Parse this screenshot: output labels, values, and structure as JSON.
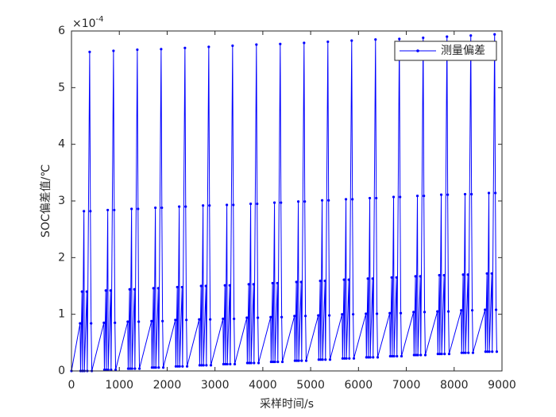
{
  "chart_data": {
    "type": "line",
    "xlabel": "采样时间/s",
    "ylabel": "SOC偏差值/℃",
    "y_multiplier": {
      "base": "×10",
      "exponent": "-4"
    },
    "xlim": [
      0,
      9000
    ],
    "xticks": [
      0,
      1000,
      2000,
      3000,
      4000,
      5000,
      6000,
      7000,
      8000,
      9000
    ],
    "ylim": [
      0,
      6
    ],
    "yticks": [
      0,
      1,
      2,
      3,
      4,
      5,
      6
    ],
    "legend_position": "upper right",
    "grid": false,
    "x": [
      0,
      180,
      190,
      220,
      230,
      260,
      270,
      320,
      330,
      380,
      395,
      410,
      425,
      678,
      688,
      718,
      728,
      758,
      768,
      818,
      828,
      878,
      893,
      908,
      923,
      1176,
      1186,
      1216,
      1226,
      1256,
      1266,
      1316,
      1326,
      1376,
      1391,
      1406,
      1421,
      1674,
      1684,
      1714,
      1724,
      1754,
      1764,
      1814,
      1824,
      1874,
      1889,
      1904,
      1919,
      2172,
      2182,
      2212,
      2222,
      2252,
      2262,
      2312,
      2322,
      2372,
      2387,
      2402,
      2417,
      2670,
      2680,
      2710,
      2720,
      2750,
      2760,
      2810,
      2820,
      2870,
      2885,
      2900,
      2915,
      3168,
      3178,
      3208,
      3218,
      3248,
      3258,
      3308,
      3318,
      3368,
      3383,
      3398,
      3413,
      3666,
      3676,
      3706,
      3716,
      3746,
      3756,
      3806,
      3816,
      3866,
      3881,
      3896,
      3911,
      4164,
      4174,
      4204,
      4214,
      4244,
      4254,
      4304,
      4314,
      4364,
      4379,
      4394,
      4409,
      4662,
      4672,
      4702,
      4712,
      4742,
      4752,
      4802,
      4812,
      4862,
      4877,
      4892,
      4907,
      5160,
      5170,
      5200,
      5210,
      5240,
      5250,
      5300,
      5310,
      5360,
      5375,
      5390,
      5405,
      5658,
      5668,
      5698,
      5708,
      5738,
      5748,
      5798,
      5808,
      5858,
      5873,
      5888,
      5903,
      6156,
      6166,
      6196,
      6206,
      6236,
      6246,
      6296,
      6306,
      6356,
      6371,
      6386,
      6401,
      6654,
      6664,
      6694,
      6704,
      6734,
      6744,
      6794,
      6804,
      6854,
      6869,
      6884,
      6899,
      7152,
      7162,
      7192,
      7202,
      7232,
      7242,
      7292,
      7302,
      7352,
      7367,
      7382,
      7397,
      7650,
      7660,
      7690,
      7700,
      7730,
      7740,
      7790,
      7800,
      7850,
      7865,
      7880,
      7895,
      8148,
      8158,
      8188,
      8198,
      8228,
      8238,
      8288,
      8298,
      8348,
      8363,
      8378,
      8393,
      8646,
      8656,
      8686,
      8696,
      8726,
      8736,
      8786,
      8796,
      8846,
      8861,
      8876,
      8891
    ],
    "series": [
      {
        "name": "测量偏差",
        "color": "#0000ff",
        "values": [
          0,
          0.84,
          0,
          1.4,
          0,
          2.82,
          0,
          1.4,
          0,
          5.63,
          2.82,
          0.84,
          0,
          0.85,
          0.02,
          1.42,
          0.02,
          2.84,
          0.02,
          1.42,
          0.02,
          5.65,
          2.84,
          0.85,
          0.02,
          0.87,
          0.04,
          1.44,
          0.04,
          2.86,
          0.04,
          1.44,
          0.04,
          5.67,
          2.86,
          0.87,
          0.04,
          0.88,
          0.06,
          1.46,
          0.06,
          2.88,
          0.06,
          1.46,
          0.06,
          5.68,
          2.88,
          0.88,
          0.06,
          0.9,
          0.08,
          1.48,
          0.08,
          2.9,
          0.08,
          1.48,
          0.08,
          5.7,
          2.9,
          0.9,
          0.08,
          0.91,
          0.1,
          1.5,
          0.1,
          2.92,
          0.1,
          1.5,
          0.1,
          5.72,
          2.92,
          0.91,
          0.1,
          0.92,
          0.12,
          1.51,
          0.12,
          2.93,
          0.12,
          1.51,
          0.12,
          5.74,
          2.93,
          0.92,
          0.12,
          0.94,
          0.14,
          1.53,
          0.14,
          2.95,
          0.14,
          1.53,
          0.14,
          5.76,
          2.95,
          0.94,
          0.14,
          0.95,
          0.16,
          1.55,
          0.16,
          2.97,
          0.16,
          1.55,
          0.16,
          5.77,
          2.97,
          0.95,
          0.16,
          0.97,
          0.18,
          1.57,
          0.18,
          2.99,
          0.18,
          1.57,
          0.18,
          5.79,
          2.99,
          0.97,
          0.18,
          0.98,
          0.2,
          1.59,
          0.2,
          3.01,
          0.2,
          1.59,
          0.2,
          5.81,
          3.01,
          0.98,
          0.2,
          1.0,
          0.22,
          1.61,
          0.22,
          3.03,
          0.22,
          1.61,
          0.22,
          5.83,
          3.03,
          1.0,
          0.22,
          1.01,
          0.24,
          1.63,
          0.24,
          3.05,
          0.24,
          1.63,
          0.24,
          5.85,
          3.05,
          1.01,
          0.24,
          1.02,
          0.26,
          1.65,
          0.26,
          3.07,
          0.26,
          1.65,
          0.26,
          5.86,
          3.07,
          1.02,
          0.26,
          1.04,
          0.28,
          1.67,
          0.28,
          3.09,
          0.28,
          1.67,
          0.28,
          5.88,
          3.09,
          1.04,
          0.28,
          1.05,
          0.3,
          1.69,
          0.3,
          3.11,
          0.3,
          1.69,
          0.3,
          5.9,
          3.11,
          1.05,
          0.3,
          1.07,
          0.32,
          1.7,
          0.32,
          3.12,
          0.32,
          1.7,
          0.32,
          5.92,
          3.12,
          1.07,
          0.32,
          1.08,
          0.34,
          1.72,
          0.34,
          3.14,
          0.34,
          1.72,
          0.34,
          5.94,
          3.14,
          1.08,
          0.34
        ]
      }
    ]
  }
}
